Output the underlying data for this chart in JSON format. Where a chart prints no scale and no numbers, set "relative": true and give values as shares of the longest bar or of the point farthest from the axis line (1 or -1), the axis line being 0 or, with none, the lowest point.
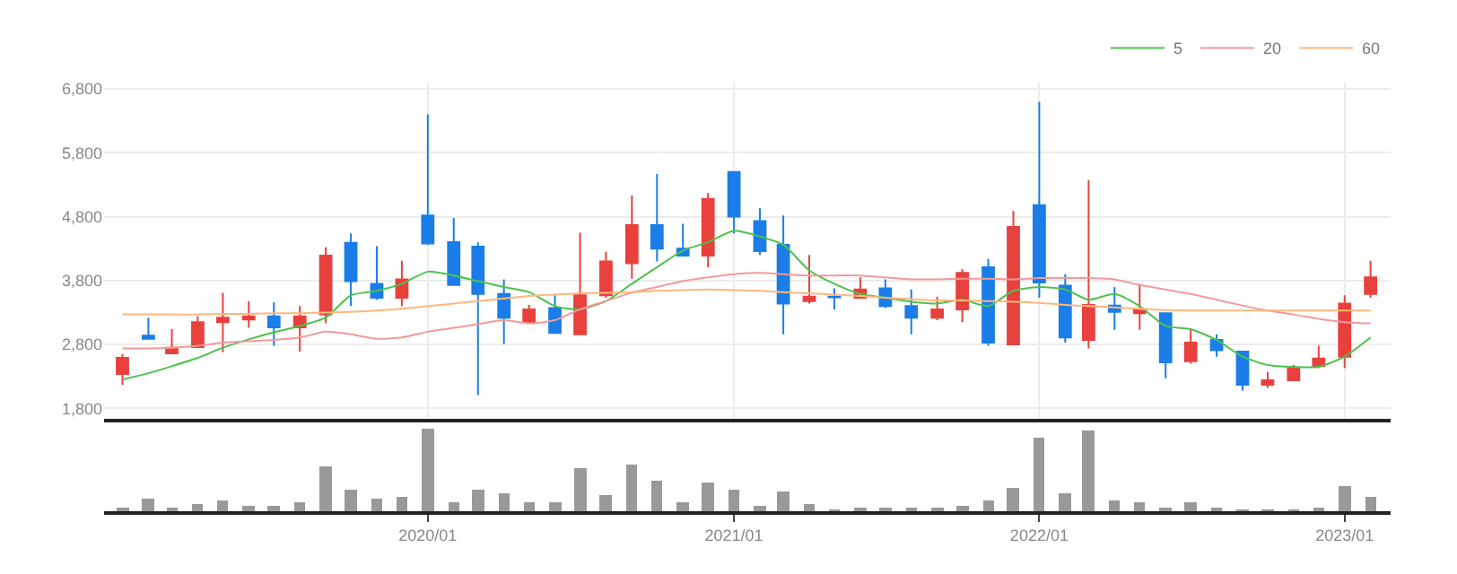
{
  "chart_data": [
    {
      "type": "candlestick",
      "x": [
        "2019-01",
        "2019-02",
        "2019-03",
        "2019-04",
        "2019-05",
        "2019-06",
        "2019-07",
        "2019-08",
        "2019-09",
        "2019-10",
        "2019-11",
        "2019-12",
        "2020-01",
        "2020-02",
        "2020-03",
        "2020-04",
        "2020-05",
        "2020-06",
        "2020-07",
        "2020-08",
        "2020-09",
        "2020-10",
        "2020-11",
        "2020-12",
        "2021-01",
        "2021-02",
        "2021-03",
        "2021-04",
        "2021-05",
        "2021-06",
        "2021-07",
        "2021-08",
        "2021-09",
        "2021-10",
        "2021-11",
        "2021-12",
        "2022-01",
        "2022-02",
        "2022-03",
        "2022-04",
        "2022-05",
        "2022-06",
        "2022-07",
        "2022-08",
        "2022-09",
        "2022-10",
        "2022-11",
        "2022-12",
        "2023-01",
        "2023-02"
      ],
      "ohlc": [
        [
          2340,
          2650,
          2170,
          2590
        ],
        [
          2940,
          3220,
          2880,
          2890
        ],
        [
          2660,
          3040,
          2650,
          2750
        ],
        [
          2760,
          3240,
          2750,
          3150
        ],
        [
          3150,
          3610,
          2680,
          3220
        ],
        [
          3190,
          3480,
          3060,
          3240
        ],
        [
          3240,
          3460,
          2780,
          3070
        ],
        [
          3070,
          3400,
          2690,
          3240
        ],
        [
          3270,
          4320,
          3130,
          4190
        ],
        [
          4390,
          4540,
          3400,
          3790
        ],
        [
          3750,
          4340,
          3500,
          3530
        ],
        [
          3530,
          4110,
          3400,
          3820
        ],
        [
          4820,
          6400,
          4360,
          4380
        ],
        [
          4400,
          4780,
          3720,
          3730
        ],
        [
          4330,
          4400,
          2010,
          3590
        ],
        [
          3590,
          3820,
          2810,
          3220
        ],
        [
          3150,
          3420,
          3150,
          3350
        ],
        [
          3370,
          3570,
          2970,
          2980
        ],
        [
          2960,
          4550,
          2960,
          3570
        ],
        [
          3570,
          4250,
          3530,
          4100
        ],
        [
          4070,
          5130,
          3830,
          4670
        ],
        [
          4670,
          5470,
          4100,
          4300
        ],
        [
          4300,
          4690,
          4190,
          4190
        ],
        [
          4190,
          5170,
          4010,
          5080
        ],
        [
          5500,
          5510,
          4540,
          4800
        ],
        [
          4730,
          4930,
          4200,
          4260
        ],
        [
          4360,
          4820,
          2960,
          3440
        ],
        [
          3480,
          4200,
          3440,
          3550
        ],
        [
          3550,
          3680,
          3350,
          3540
        ],
        [
          3530,
          3850,
          3530,
          3660
        ],
        [
          3680,
          3820,
          3370,
          3400
        ],
        [
          3400,
          3660,
          2960,
          3220
        ],
        [
          3220,
          3550,
          3180,
          3350
        ],
        [
          3350,
          3980,
          3150,
          3920
        ],
        [
          4010,
          4140,
          2780,
          2830
        ],
        [
          2800,
          4890,
          2800,
          4640
        ],
        [
          4980,
          6600,
          3530,
          3770
        ],
        [
          3720,
          3900,
          2830,
          2910
        ],
        [
          2870,
          5370,
          2740,
          3420
        ],
        [
          3410,
          3700,
          3030,
          3310
        ],
        [
          3290,
          3750,
          3030,
          3350
        ],
        [
          3290,
          3290,
          2270,
          2520
        ],
        [
          2540,
          3040,
          2500,
          2830
        ],
        [
          2870,
          2960,
          2610,
          2710
        ],
        [
          2690,
          2690,
          2080,
          2170
        ],
        [
          2170,
          2370,
          2120,
          2240
        ],
        [
          2240,
          2480,
          2240,
          2430
        ],
        [
          2460,
          2780,
          2430,
          2580
        ],
        [
          2610,
          3570,
          2430,
          3440
        ],
        [
          3590,
          4110,
          3530,
          3850
        ]
      ],
      "colors": [
        "#e8413d",
        "#1a7de8",
        "#e8413d",
        "#e8413d",
        "#e8413d",
        "#e8413d",
        "#1a7de8",
        "#e8413d",
        "#e8413d",
        "#1a7de8",
        "#1a7de8",
        "#e8413d",
        "#1a7de8",
        "#1a7de8",
        "#1a7de8",
        "#1a7de8",
        "#e8413d",
        "#1a7de8",
        "#e8413d",
        "#e8413d",
        "#e8413d",
        "#1a7de8",
        "#1a7de8",
        "#e8413d",
        "#1a7de8",
        "#1a7de8",
        "#1a7de8",
        "#e8413d",
        "#1a7de8",
        "#e8413d",
        "#1a7de8",
        "#1a7de8",
        "#e8413d",
        "#e8413d",
        "#1a7de8",
        "#e8413d",
        "#1a7de8",
        "#1a7de8",
        "#e8413d",
        "#1a7de8",
        "#e8413d",
        "#1a7de8",
        "#e8413d",
        "#1a7de8",
        "#1a7de8",
        "#e8413d",
        "#e8413d",
        "#e8413d",
        "#e8413d",
        "#e8413d"
      ],
      "series": [
        {
          "name": "5",
          "type": "line",
          "color": "#4cc24c",
          "values": [
            2250,
            2350,
            2460,
            2590,
            2750,
            2880,
            2990,
            3090,
            3220,
            3570,
            3640,
            3750,
            3940,
            3880,
            3790,
            3700,
            3620,
            3400,
            3350,
            3480,
            3750,
            4010,
            4270,
            4400,
            4580,
            4490,
            4360,
            3960,
            3750,
            3590,
            3530,
            3470,
            3440,
            3500,
            3400,
            3640,
            3700,
            3660,
            3500,
            3590,
            3400,
            3090,
            3040,
            2870,
            2610,
            2480,
            2450,
            2450,
            2610,
            2910
          ]
        },
        {
          "name": "20",
          "type": "line",
          "color": "#f29a9a",
          "values": [
            2740,
            2740,
            2750,
            2780,
            2830,
            2850,
            2870,
            2910,
            3000,
            2960,
            2890,
            2910,
            3000,
            3060,
            3120,
            3180,
            3130,
            3180,
            3350,
            3480,
            3610,
            3700,
            3790,
            3850,
            3900,
            3920,
            3900,
            3880,
            3880,
            3880,
            3850,
            3820,
            3820,
            3830,
            3830,
            3820,
            3840,
            3840,
            3840,
            3820,
            3730,
            3660,
            3590,
            3500,
            3410,
            3330,
            3270,
            3200,
            3150,
            3130
          ]
        },
        {
          "name": "60",
          "type": "line",
          "color": "#ffb77a",
          "values": [
            3270,
            3270,
            3270,
            3270,
            3280,
            3280,
            3290,
            3290,
            3300,
            3310,
            3330,
            3360,
            3400,
            3440,
            3480,
            3520,
            3560,
            3580,
            3600,
            3610,
            3620,
            3640,
            3650,
            3660,
            3650,
            3640,
            3620,
            3600,
            3580,
            3560,
            3530,
            3510,
            3490,
            3490,
            3480,
            3470,
            3450,
            3420,
            3400,
            3380,
            3360,
            3340,
            3330,
            3330,
            3330,
            3330,
            3330,
            3330,
            3330,
            3330
          ]
        }
      ],
      "ylim": [
        1640,
        6900
      ],
      "yticks": [
        {
          "value": 1800,
          "label": "1,800"
        },
        {
          "value": 2800,
          "label": "2,800"
        },
        {
          "value": 3800,
          "label": "3,800"
        },
        {
          "value": 4800,
          "label": "4,800"
        },
        {
          "value": 5800,
          "label": "5,800"
        },
        {
          "value": 6800,
          "label": "6,800"
        }
      ],
      "xlim": [
        "2018-12-10",
        "2023-02-25"
      ],
      "xticks": [
        {
          "value": "2020-01",
          "label": null
        },
        {
          "value": "2021-01",
          "label": null
        },
        {
          "value": "2022-01",
          "label": null
        },
        {
          "value": "2023-01",
          "label": null
        }
      ],
      "grid": true,
      "legend": "top right",
      "tick_labels": "y"
    },
    {
      "type": "bar",
      "x": [
        "2019-01",
        "2019-02",
        "2019-03",
        "2019-04",
        "2019-05",
        "2019-06",
        "2019-07",
        "2019-08",
        "2019-09",
        "2019-10",
        "2019-11",
        "2019-12",
        "2020-01",
        "2020-02",
        "2020-03",
        "2020-04",
        "2020-05",
        "2020-06",
        "2020-07",
        "2020-08",
        "2020-09",
        "2020-10",
        "2020-11",
        "2020-12",
        "2021-01",
        "2021-02",
        "2021-03",
        "2021-04",
        "2021-05",
        "2021-06",
        "2021-07",
        "2021-08",
        "2021-09",
        "2021-10",
        "2021-11",
        "2021-12",
        "2022-01",
        "2022-02",
        "2022-03",
        "2022-04",
        "2022-05",
        "2022-06",
        "2022-07",
        "2022-08",
        "2022-09",
        "2022-10",
        "2022-11",
        "2022-12",
        "2023-01",
        "2023-02"
      ],
      "values": [
        0.04,
        0.16,
        0.04,
        0.08,
        0.13,
        0.06,
        0.06,
        0.1,
        0.54,
        0.26,
        0.14,
        0.18,
        1,
        0.11,
        0.26,
        0.22,
        0.11,
        0.1,
        0.53,
        0.2,
        0.57,
        0.38,
        0.1,
        0.34,
        0.26,
        0.06,
        0.23,
        0.08,
        0.01,
        0.04,
        0.03,
        0.04,
        0.03,
        0.06,
        0.13,
        0.28,
        0.89,
        0.21,
        0.98,
        0.13,
        0.11,
        0.04,
        0.1,
        0.04,
        0.01,
        0.01,
        0.01,
        0.04,
        0.3,
        0.17
      ],
      "color": "#999999",
      "relative": true,
      "xlim": [
        "2018-12-10",
        "2023-02-25"
      ],
      "xticks": [
        {
          "value": "2020-01",
          "label": "2020/01"
        },
        {
          "value": "2021-01",
          "label": "2021/01"
        },
        {
          "value": "2022-01",
          "label": "2022/01"
        },
        {
          "value": "2023-01",
          "label": "2023/01"
        }
      ],
      "tick_labels": "x"
    }
  ]
}
